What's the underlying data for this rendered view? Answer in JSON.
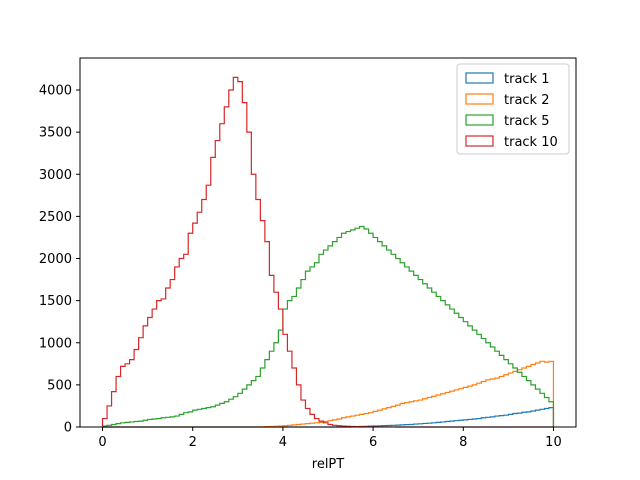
{
  "chart_data": {
    "type": "histogram",
    "xlabel": "relPT",
    "ylabel": "",
    "xlim": [
      -0.5,
      10.5
    ],
    "ylim": [
      0,
      4380
    ],
    "xticks": [
      0,
      2,
      4,
      6,
      8,
      10
    ],
    "yticks": [
      0,
      500,
      1000,
      1500,
      2000,
      2500,
      3000,
      3500,
      4000
    ],
    "grid": false,
    "legend_position": "top-right",
    "bin_edges": {
      "start": 0,
      "end": 10,
      "count": 100
    },
    "series": [
      {
        "name": "track 1",
        "color": "#1f77b4",
        "values": [
          0,
          0,
          0,
          0,
          0,
          0,
          0,
          0,
          0,
          0,
          0,
          0,
          0,
          0,
          0,
          0,
          0,
          0,
          0,
          0,
          0,
          0,
          0,
          0,
          0,
          0,
          0,
          0,
          0,
          0,
          0,
          0,
          0,
          0,
          0,
          0,
          0,
          0,
          0,
          0,
          0,
          0,
          0,
          0,
          0,
          0,
          0,
          0,
          0,
          0,
          0,
          0,
          0,
          0,
          0,
          2,
          4,
          6,
          8,
          10,
          12,
          14,
          16,
          18,
          20,
          22,
          25,
          28,
          30,
          35,
          38,
          42,
          45,
          50,
          55,
          60,
          65,
          70,
          75,
          80,
          85,
          90,
          95,
          100,
          110,
          115,
          120,
          130,
          135,
          140,
          150,
          160,
          165,
          175,
          180,
          190,
          200,
          210,
          220,
          230
        ]
      },
      {
        "name": "track 2",
        "color": "#ff7f0e",
        "values": [
          0,
          0,
          0,
          0,
          0,
          0,
          0,
          0,
          0,
          0,
          0,
          0,
          0,
          0,
          0,
          0,
          0,
          0,
          0,
          0,
          0,
          0,
          0,
          0,
          0,
          0,
          0,
          0,
          0,
          0,
          0,
          0,
          0,
          0,
          0,
          2,
          4,
          6,
          8,
          10,
          15,
          20,
          25,
          30,
          35,
          40,
          45,
          50,
          55,
          65,
          75,
          85,
          95,
          110,
          120,
          130,
          140,
          150,
          160,
          170,
          185,
          200,
          215,
          230,
          245,
          260,
          280,
          290,
          300,
          310,
          320,
          335,
          350,
          365,
          380,
          395,
          410,
          425,
          440,
          455,
          470,
          485,
          500,
          520,
          540,
          560,
          570,
          580,
          600,
          620,
          640,
          660,
          680,
          700,
          720,
          740,
          760,
          780,
          770,
          780
        ]
      },
      {
        "name": "track 5",
        "color": "#2ca02c",
        "values": [
          10,
          20,
          30,
          40,
          50,
          55,
          60,
          65,
          70,
          80,
          90,
          95,
          100,
          110,
          115,
          120,
          130,
          150,
          170,
          180,
          200,
          210,
          220,
          230,
          240,
          260,
          280,
          300,
          330,
          360,
          400,
          450,
          500,
          550,
          600,
          700,
          800,
          900,
          1000,
          1150,
          1400,
          1500,
          1550,
          1650,
          1750,
          1850,
          1900,
          1950,
          2050,
          2100,
          2150,
          2200,
          2250,
          2300,
          2320,
          2340,
          2360,
          2380,
          2350,
          2300,
          2250,
          2200,
          2150,
          2100,
          2050,
          2000,
          1950,
          1900,
          1850,
          1800,
          1750,
          1700,
          1650,
          1600,
          1550,
          1500,
          1450,
          1400,
          1350,
          1300,
          1250,
          1200,
          1150,
          1100,
          1050,
          1000,
          950,
          900,
          850,
          800,
          750,
          700,
          650,
          600,
          550,
          500,
          450,
          400,
          350,
          300
        ]
      },
      {
        "name": "track 10",
        "color": "#d62728",
        "values": [
          100,
          250,
          420,
          600,
          720,
          750,
          800,
          920,
          1060,
          1200,
          1300,
          1400,
          1500,
          1520,
          1650,
          1750,
          1900,
          2000,
          2050,
          2300,
          2420,
          2550,
          2700,
          2870,
          3200,
          3400,
          3600,
          3800,
          4000,
          4150,
          4100,
          3850,
          3500,
          3000,
          2700,
          2450,
          2200,
          1800,
          1600,
          1400,
          1100,
          900,
          700,
          500,
          320,
          220,
          150,
          100,
          70,
          50,
          30,
          20,
          15,
          10,
          8,
          6,
          5,
          4,
          3,
          2,
          2,
          1,
          1,
          1,
          1,
          0,
          0,
          0,
          0,
          0,
          0,
          0,
          0,
          0,
          0,
          0,
          0,
          0,
          0,
          0,
          0,
          0,
          0,
          0,
          0,
          0,
          0,
          0,
          0,
          0,
          0,
          0,
          0,
          0,
          0,
          0,
          0,
          0,
          0,
          0
        ]
      }
    ]
  }
}
